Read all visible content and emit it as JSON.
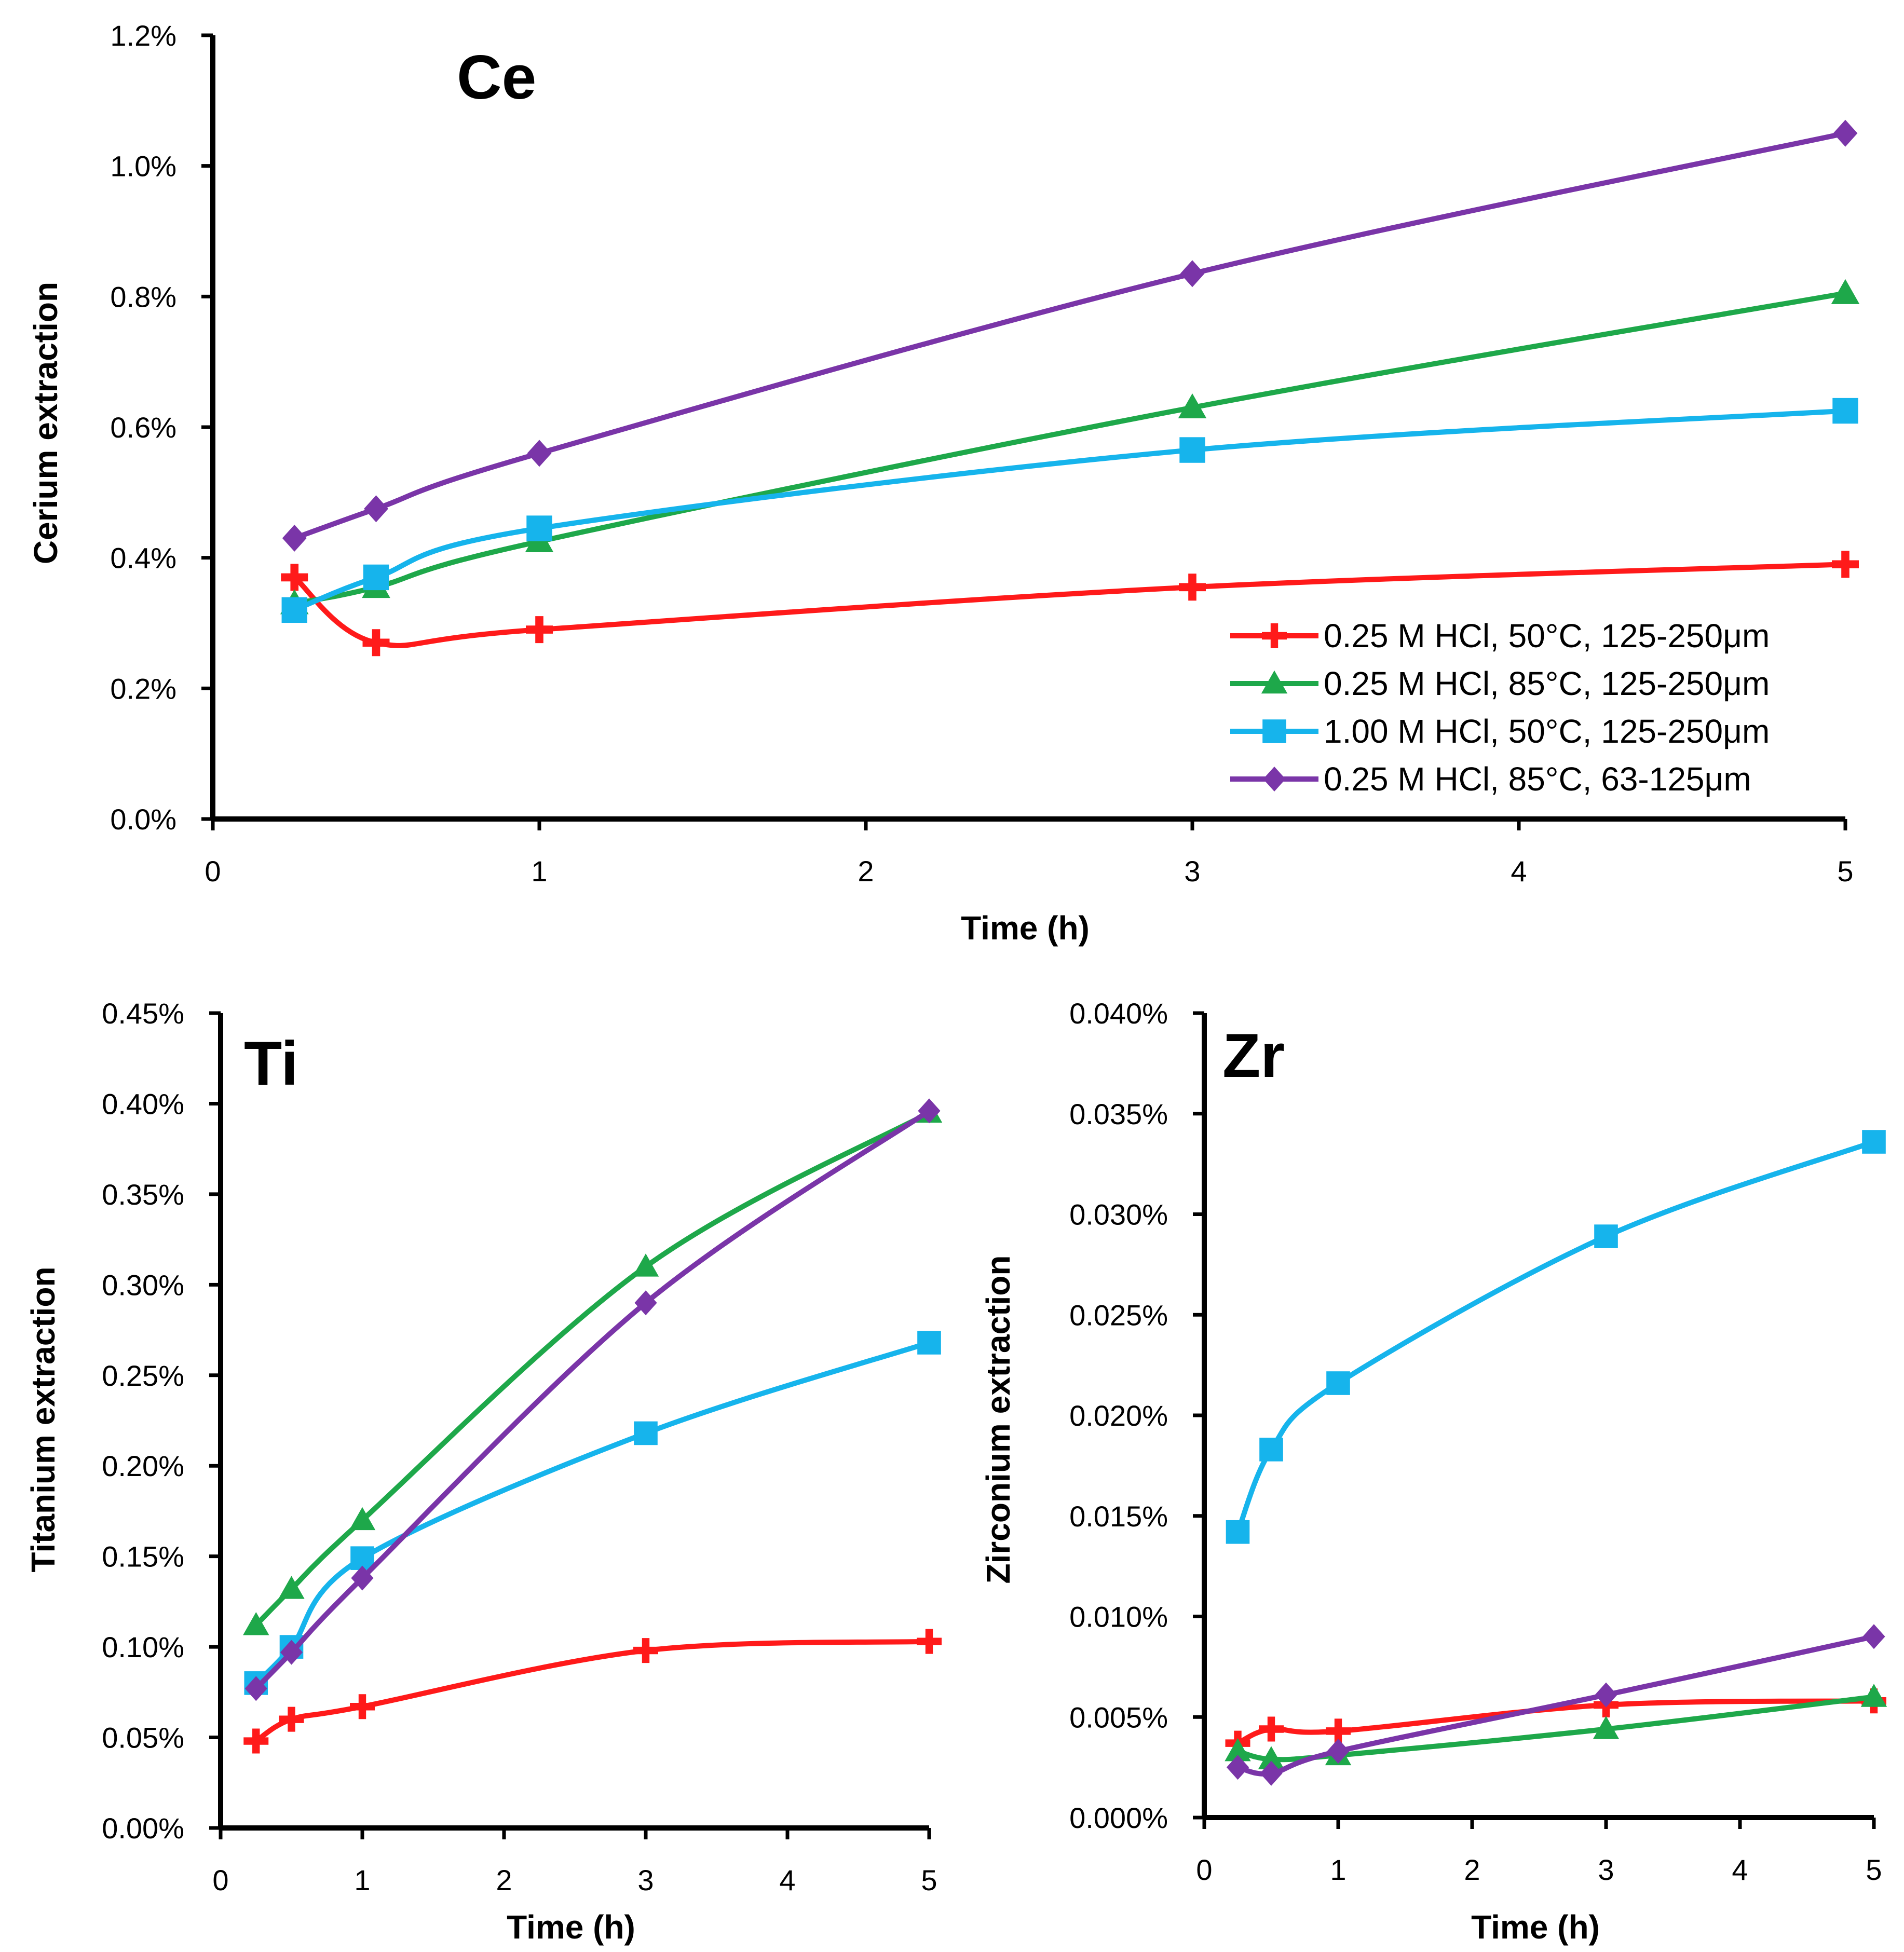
{
  "chart_data": [
    {
      "type": "line",
      "panel_title": "Ce",
      "xlabel": "Time (h)",
      "ylabel": "Cerium extraction",
      "xlim": [
        0,
        5
      ],
      "ylim": [
        0,
        1.2
      ],
      "xticks": [
        0,
        1,
        2,
        3,
        4,
        5
      ],
      "yticks": [
        0,
        0.2,
        0.4,
        0.6,
        0.8,
        1.0,
        1.2
      ],
      "ytick_labels": [
        "0.0%",
        "0.2%",
        "0.4%",
        "0.6%",
        "0.8%",
        "1.0%",
        "1.2%"
      ],
      "legend_position": "bottom-right",
      "series": [
        {
          "name": "0.25 M HCl, 50°C, 125-250μm",
          "x": [
            0.25,
            0.5,
            1,
            3,
            5
          ],
          "values": [
            0.37,
            0.27,
            0.29,
            0.355,
            0.39
          ]
        },
        {
          "name": "0.25 M HCl, 85°C, 125-250μm",
          "x": [
            0.25,
            0.5,
            1,
            3,
            5
          ],
          "values": [
            0.33,
            0.355,
            0.425,
            0.63,
            0.805
          ]
        },
        {
          "name": "1.00 M HCl, 50°C, 125-250μm",
          "x": [
            0.25,
            0.5,
            1,
            3,
            5
          ],
          "values": [
            0.32,
            0.37,
            0.445,
            0.565,
            0.625
          ]
        },
        {
          "name": "0.25 M HCl, 85°C, 63-125μm",
          "x": [
            0.25,
            0.5,
            1,
            3,
            5
          ],
          "values": [
            0.43,
            0.475,
            0.56,
            0.835,
            1.05
          ]
        }
      ]
    },
    {
      "type": "line",
      "panel_title": "Ti",
      "xlabel": "Time (h)",
      "ylabel": "Titanium extraction",
      "xlim": [
        0,
        5
      ],
      "ylim": [
        0,
        0.45
      ],
      "xticks": [
        0,
        1,
        2,
        3,
        4,
        5
      ],
      "yticks": [
        0,
        0.05,
        0.1,
        0.15,
        0.2,
        0.25,
        0.3,
        0.35,
        0.4,
        0.45
      ],
      "ytick_labels": [
        "0.00%",
        "0.05%",
        "0.10%",
        "0.15%",
        "0.20%",
        "0.25%",
        "0.30%",
        "0.35%",
        "0.40%",
        "0.45%"
      ],
      "series": [
        {
          "name": "0.25 M HCl, 50°C, 125-250μm",
          "x": [
            0.25,
            0.5,
            1,
            3,
            5
          ],
          "values": [
            0.048,
            0.06,
            0.067,
            0.098,
            0.103
          ]
        },
        {
          "name": "0.25 M HCl, 85°C, 125-250μm",
          "x": [
            0.25,
            0.5,
            1,
            3,
            5
          ],
          "values": [
            0.112,
            0.132,
            0.17,
            0.31,
            0.395
          ]
        },
        {
          "name": "1.00 M HCl, 50°C, 125-250μm",
          "x": [
            0.25,
            0.5,
            1,
            3,
            5
          ],
          "values": [
            0.08,
            0.1,
            0.149,
            0.218,
            0.268
          ]
        },
        {
          "name": "0.25 M HCl, 85°C, 63-125μm",
          "x": [
            0.25,
            0.5,
            1,
            3,
            5
          ],
          "values": [
            0.077,
            0.097,
            0.138,
            0.29,
            0.396
          ]
        }
      ]
    },
    {
      "type": "line",
      "panel_title": "Zr",
      "xlabel": "Time (h)",
      "ylabel": "Zirconium extraction",
      "xlim": [
        0,
        5
      ],
      "ylim": [
        0,
        0.04
      ],
      "xticks": [
        0,
        1,
        2,
        3,
        4,
        5
      ],
      "yticks": [
        0,
        0.005,
        0.01,
        0.015,
        0.02,
        0.025,
        0.03,
        0.035,
        0.04
      ],
      "ytick_labels": [
        "0.000%",
        "0.005%",
        "0.010%",
        "0.015%",
        "0.020%",
        "0.025%",
        "0.030%",
        "0.035%",
        "0.040%"
      ],
      "series": [
        {
          "name": "0.25 M HCl, 50°C, 125-250μm",
          "x": [
            0.25,
            0.5,
            1,
            3,
            5
          ],
          "values": [
            0.0037,
            0.0044,
            0.0043,
            0.0056,
            0.0058
          ]
        },
        {
          "name": "0.25 M HCl, 85°C, 125-250μm",
          "x": [
            0.25,
            0.5,
            1,
            3,
            5
          ],
          "values": [
            0.0033,
            0.0029,
            0.0031,
            0.0044,
            0.006
          ]
        },
        {
          "name": "1.00 M HCl, 50°C, 125-250μm",
          "x": [
            0.25,
            0.5,
            1,
            3,
            5
          ],
          "values": [
            0.0142,
            0.0183,
            0.0216,
            0.0289,
            0.0336
          ]
        },
        {
          "name": "0.25 M HCl, 85°C, 63-125μm",
          "x": [
            0.25,
            0.5,
            1,
            3,
            5
          ],
          "values": [
            0.0025,
            0.0022,
            0.0033,
            0.0061,
            0.009
          ]
        }
      ]
    }
  ],
  "styles": {
    "series_colors": [
      "#ff1a1a",
      "#1ea84a",
      "#16b4ec",
      "#7a35a8"
    ],
    "series_markers": [
      "plus",
      "triangle",
      "square",
      "diamond"
    ]
  }
}
